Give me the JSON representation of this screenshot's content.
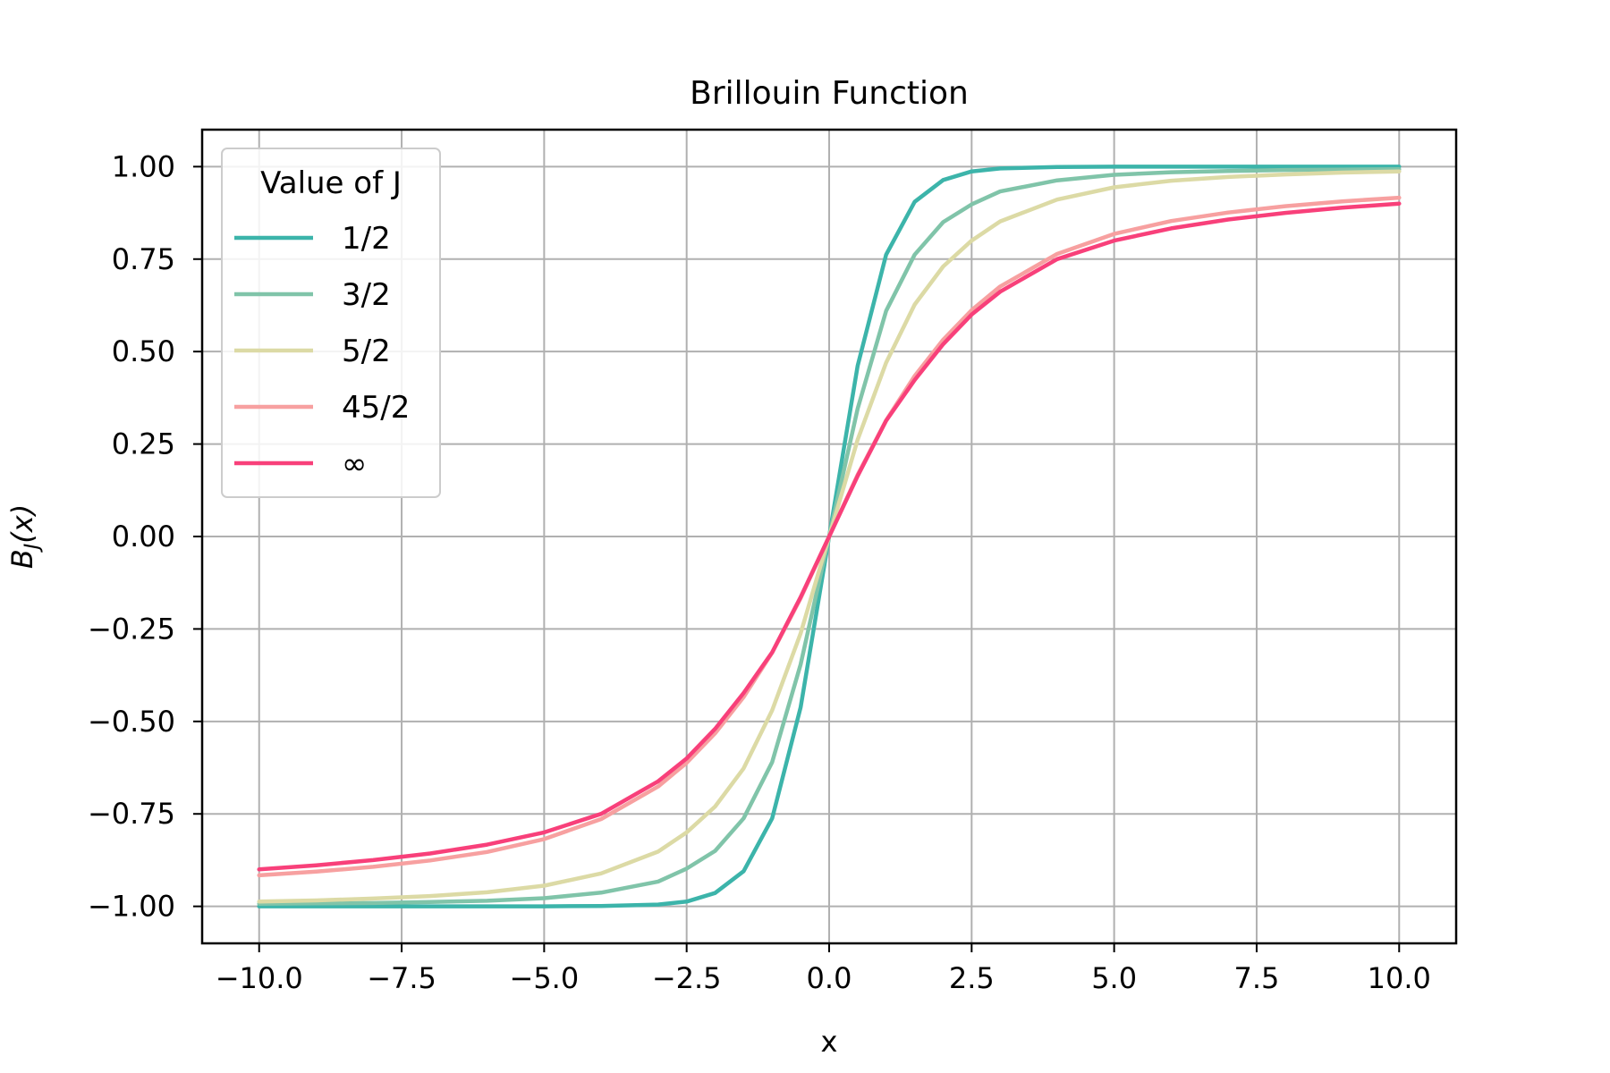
{
  "chart_data": {
    "type": "line",
    "title": "Brillouin Function",
    "xlabel": "x",
    "ylabel": "B_J(x)",
    "xlim": [
      -11,
      11
    ],
    "ylim": [
      -1.1,
      1.1
    ],
    "xticks": [
      -10.0,
      -7.5,
      -5.0,
      -2.5,
      0.0,
      2.5,
      5.0,
      7.5,
      10.0
    ],
    "xtick_labels": [
      "−10.0",
      "−7.5",
      "−5.0",
      "−2.5",
      "0.0",
      "2.5",
      "5.0",
      "7.5",
      "10.0"
    ],
    "yticks": [
      -1.0,
      -0.75,
      -0.5,
      -0.25,
      0.0,
      0.25,
      0.5,
      0.75,
      1.0
    ],
    "ytick_labels": [
      "−1.00",
      "−0.75",
      "−0.50",
      "−0.25",
      "0.00",
      "0.25",
      "0.50",
      "0.75",
      "1.00"
    ],
    "grid": true,
    "legend": {
      "title": "Value of J",
      "placement": "upper-left"
    },
    "x": [
      -10,
      -9,
      -8,
      -7,
      -6,
      -5,
      -4,
      -3,
      -2.5,
      -2,
      -1.5,
      -1,
      -0.5,
      0,
      0.5,
      1,
      1.5,
      2,
      2.5,
      3,
      4,
      5,
      6,
      7,
      8,
      9,
      10
    ],
    "series": [
      {
        "name": "1/2",
        "color": "#3cb4aa",
        "values": [
          -1.0,
          -1.0,
          -1.0,
          -1.0,
          -1.0,
          -1.0,
          -0.999,
          -0.995,
          -0.987,
          -0.964,
          -0.905,
          -0.762,
          -0.462,
          0.0,
          0.462,
          0.762,
          0.905,
          0.964,
          0.987,
          0.995,
          0.999,
          1.0,
          1.0,
          1.0,
          1.0,
          1.0,
          1.0
        ]
      },
      {
        "name": "3/2",
        "color": "#80c4a9",
        "values": [
          -0.993,
          -0.992,
          -0.991,
          -0.988,
          -0.985,
          -0.978,
          -0.963,
          -0.933,
          -0.898,
          -0.85,
          -0.762,
          -0.61,
          -0.346,
          0.0,
          0.346,
          0.61,
          0.762,
          0.85,
          0.898,
          0.933,
          0.963,
          0.978,
          0.985,
          0.988,
          0.991,
          0.992,
          0.993
        ]
      },
      {
        "name": "5/2",
        "color": "#dcdaa5",
        "values": [
          -0.987,
          -0.984,
          -0.979,
          -0.972,
          -0.962,
          -0.944,
          -0.911,
          -0.852,
          -0.8,
          -0.73,
          -0.627,
          -0.47,
          -0.262,
          0.0,
          0.262,
          0.47,
          0.627,
          0.73,
          0.8,
          0.852,
          0.911,
          0.944,
          0.962,
          0.972,
          0.979,
          0.984,
          0.987
        ]
      },
      {
        "name": "45/2",
        "color": "#f7a0a0",
        "values": [
          -0.916,
          -0.906,
          -0.893,
          -0.876,
          -0.853,
          -0.818,
          -0.764,
          -0.676,
          -0.612,
          -0.532,
          -0.434,
          -0.314,
          -0.167,
          0.0,
          0.167,
          0.314,
          0.434,
          0.532,
          0.612,
          0.676,
          0.764,
          0.818,
          0.853,
          0.876,
          0.893,
          0.906,
          0.916
        ]
      },
      {
        "name": "∞",
        "color": "#f8407a",
        "values": [
          -0.9,
          -0.889,
          -0.875,
          -0.857,
          -0.833,
          -0.8,
          -0.75,
          -0.662,
          -0.6,
          -0.52,
          -0.423,
          -0.313,
          -0.164,
          0.0,
          0.164,
          0.313,
          0.423,
          0.52,
          0.6,
          0.662,
          0.75,
          0.8,
          0.833,
          0.857,
          0.875,
          0.889,
          0.9
        ]
      }
    ]
  }
}
